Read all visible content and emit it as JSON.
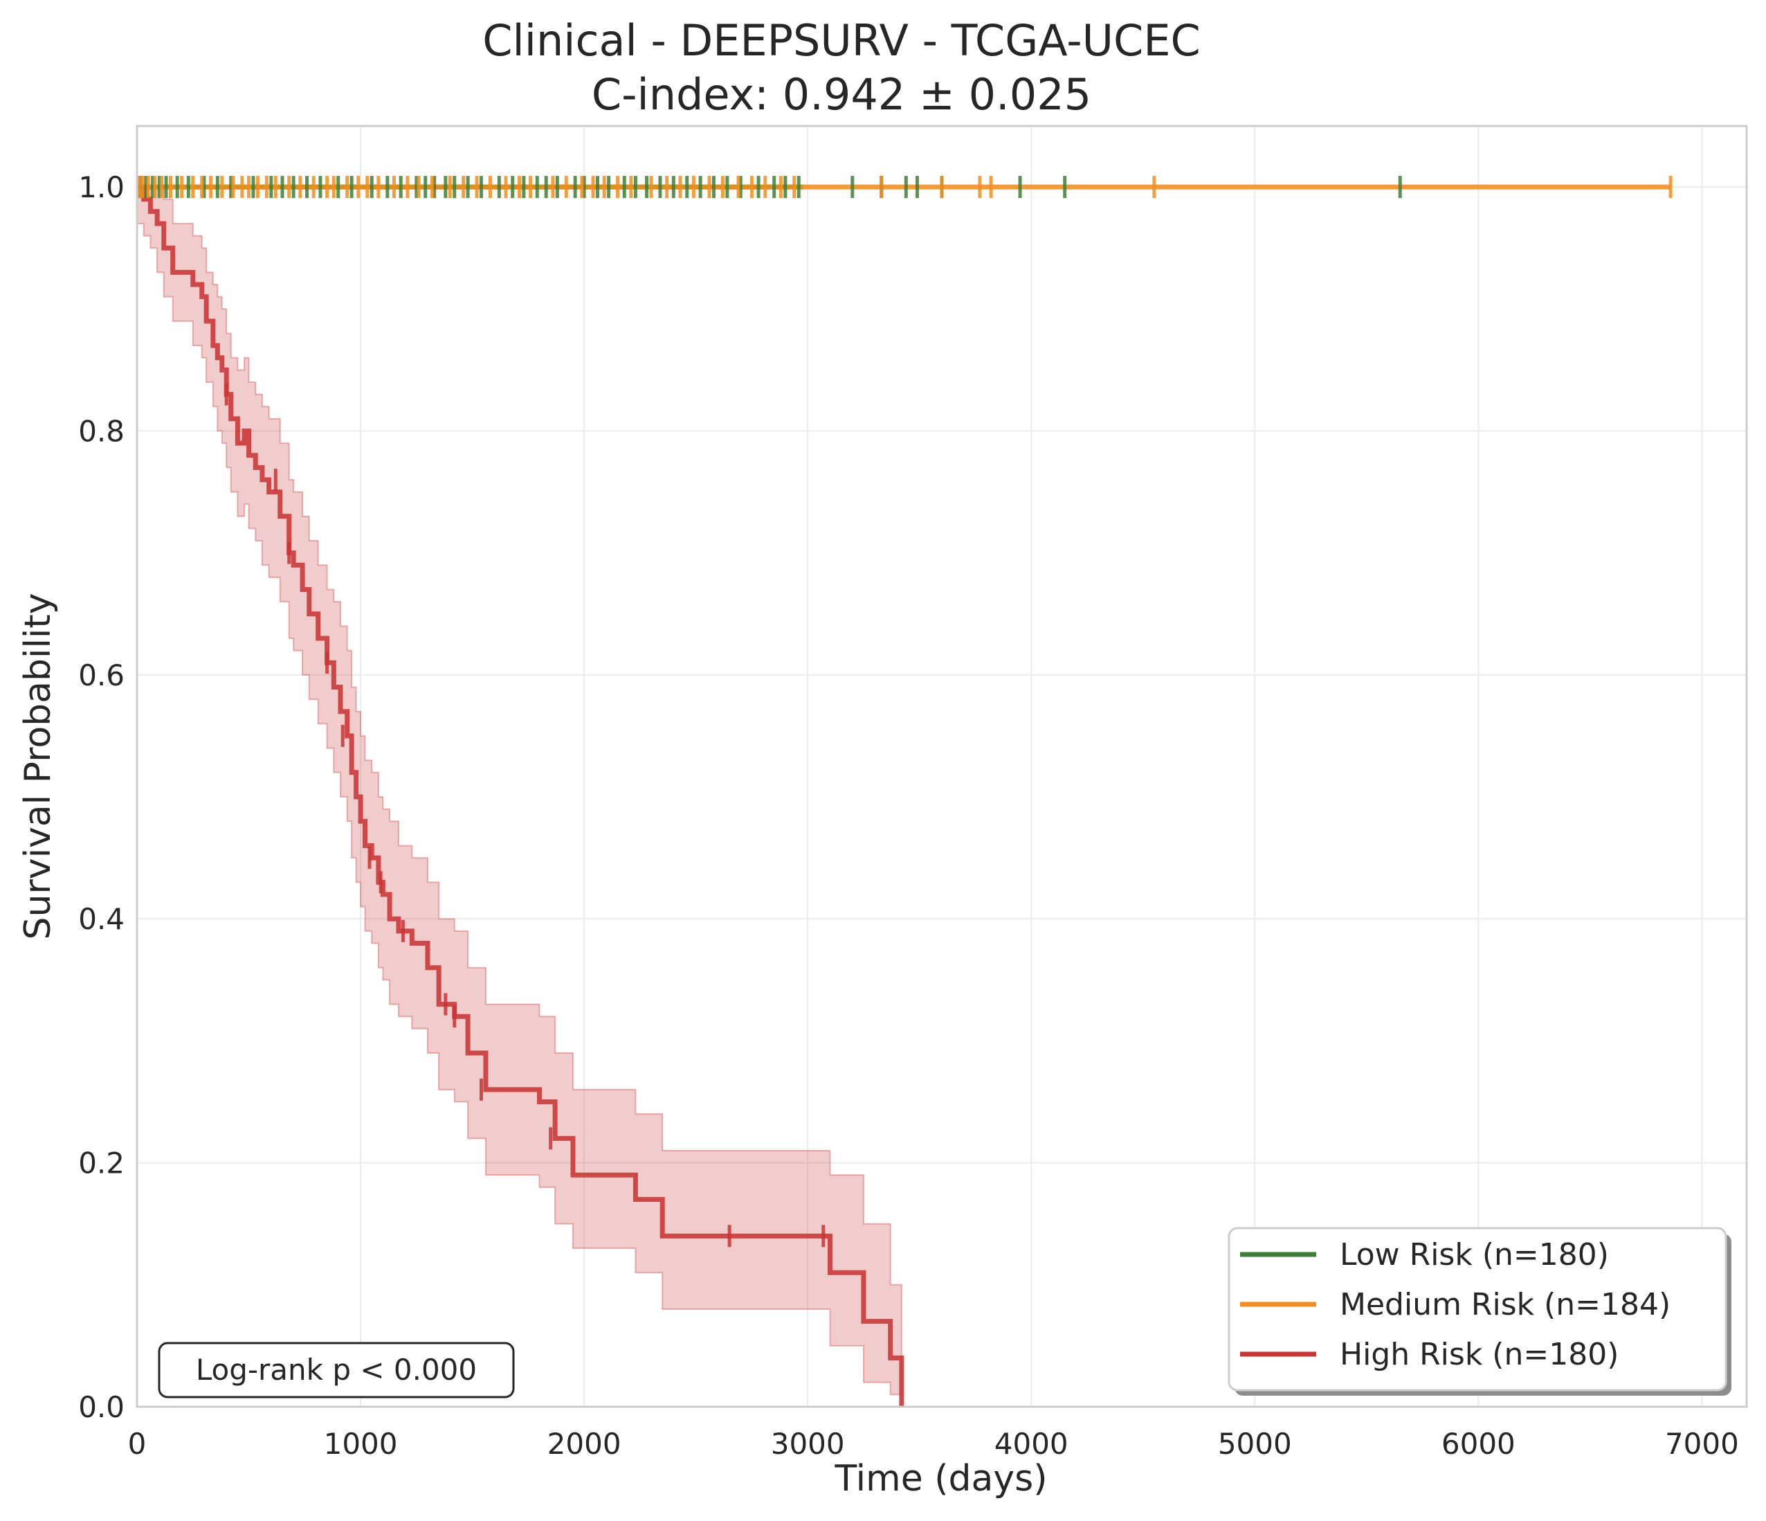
{
  "chart_data": {
    "type": "line",
    "subtype": "kaplan-meier",
    "title": "Clinical - DEEPSURV - TCGA-UCEC",
    "subtitle": "C-index: 0.942 ± 0.025",
    "xlabel": "Time (days)",
    "ylabel": "Survival Probability",
    "xlim": [
      0,
      7200
    ],
    "ylim": [
      0,
      1.05
    ],
    "x_ticks": [
      "0",
      "1000",
      "2000",
      "3000",
      "4000",
      "5000",
      "6000",
      "7000"
    ],
    "y_ticks": [
      "0.0",
      "0.2",
      "0.4",
      "0.6",
      "0.8",
      "1.0"
    ],
    "grid": true,
    "legend_position": "bottom-right",
    "annotation": "Log-rank p < 0.000",
    "series": [
      {
        "name": "Low Risk (n=180)",
        "color": "#3d7f38",
        "x": [
          0,
          2980
        ],
        "y": [
          1.0,
          1.0
        ],
        "censor_x": [
          15,
          40,
          70,
          100,
          130,
          180,
          230,
          300,
          360,
          420,
          520,
          600,
          650,
          700,
          760,
          820,
          900,
          960,
          1050,
          1120,
          1180,
          1250,
          1290,
          1330,
          1380,
          1420,
          1480,
          1540,
          1620,
          1680,
          1730,
          1790,
          1830,
          1880,
          1960,
          2000,
          2060,
          2110,
          2180,
          2230,
          2280,
          2340,
          2400,
          2460,
          2520,
          2580,
          2640,
          2700,
          2780,
          2850,
          2900,
          2960,
          3200,
          3330,
          3440,
          3490,
          3600,
          3950,
          4150,
          5650
        ],
        "censor_y": 1.0
      },
      {
        "name": "Medium Risk (n=184)",
        "color": "#f28e1c",
        "x": [
          0,
          6860
        ],
        "y": [
          1.0,
          1.0
        ],
        "censor_x": [
          10,
          25,
          50,
          80,
          110,
          150,
          200,
          250,
          290,
          330,
          380,
          430,
          470,
          500,
          540,
          580,
          620,
          680,
          730,
          790,
          850,
          880,
          940,
          990,
          1030,
          1080,
          1150,
          1210,
          1260,
          1320,
          1400,
          1460,
          1520,
          1580,
          1650,
          1710,
          1760,
          1860,
          1920,
          1990,
          2040,
          2090,
          2150,
          2210,
          2300,
          2370,
          2430,
          2490,
          2560,
          2620,
          2690,
          2750,
          2810,
          2880,
          2940,
          3330,
          3600,
          3770,
          3820,
          4550,
          6860
        ],
        "censor_y": 1.0
      },
      {
        "name": "High Risk (n=180)",
        "color": "#c93434",
        "x": [
          0,
          30,
          60,
          90,
          120,
          160,
          250,
          290,
          310,
          340,
          360,
          380,
          400,
          420,
          450,
          480,
          500,
          530,
          560,
          590,
          640,
          680,
          700,
          740,
          770,
          810,
          850,
          880,
          910,
          940,
          960,
          980,
          1000,
          1020,
          1050,
          1080,
          1100,
          1130,
          1170,
          1230,
          1300,
          1350,
          1420,
          1480,
          1560,
          1800,
          1870,
          1950,
          2230,
          2350,
          3100,
          3250,
          3370,
          3420
        ],
        "y": [
          1.0,
          0.99,
          0.98,
          0.97,
          0.95,
          0.93,
          0.92,
          0.91,
          0.89,
          0.87,
          0.86,
          0.85,
          0.83,
          0.81,
          0.79,
          0.8,
          0.78,
          0.77,
          0.76,
          0.75,
          0.73,
          0.7,
          0.69,
          0.67,
          0.65,
          0.63,
          0.61,
          0.59,
          0.57,
          0.55,
          0.52,
          0.5,
          0.48,
          0.46,
          0.45,
          0.43,
          0.42,
          0.4,
          0.39,
          0.38,
          0.36,
          0.33,
          0.32,
          0.29,
          0.26,
          0.25,
          0.22,
          0.19,
          0.17,
          0.14,
          0.11,
          0.07,
          0.04,
          0.0
        ],
        "ci_lower": [
          0.97,
          0.96,
          0.95,
          0.93,
          0.91,
          0.89,
          0.87,
          0.86,
          0.84,
          0.82,
          0.8,
          0.79,
          0.77,
          0.75,
          0.73,
          0.74,
          0.72,
          0.71,
          0.69,
          0.68,
          0.66,
          0.63,
          0.62,
          0.6,
          0.58,
          0.56,
          0.54,
          0.52,
          0.5,
          0.48,
          0.45,
          0.43,
          0.41,
          0.39,
          0.38,
          0.36,
          0.35,
          0.33,
          0.32,
          0.31,
          0.29,
          0.26,
          0.25,
          0.22,
          0.19,
          0.18,
          0.15,
          0.13,
          0.11,
          0.08,
          0.05,
          0.02,
          0.01,
          0.0
        ],
        "ci_upper": [
          1.0,
          1.0,
          1.0,
          1.0,
          0.99,
          0.97,
          0.96,
          0.95,
          0.93,
          0.92,
          0.91,
          0.9,
          0.88,
          0.86,
          0.85,
          0.86,
          0.84,
          0.83,
          0.82,
          0.81,
          0.79,
          0.76,
          0.75,
          0.73,
          0.71,
          0.69,
          0.67,
          0.66,
          0.64,
          0.62,
          0.59,
          0.57,
          0.55,
          0.53,
          0.52,
          0.5,
          0.49,
          0.48,
          0.46,
          0.45,
          0.43,
          0.4,
          0.39,
          0.36,
          0.33,
          0.32,
          0.29,
          0.26,
          0.24,
          0.21,
          0.19,
          0.15,
          0.1,
          0.0
        ],
        "censor_x": [
          400,
          620,
          680,
          850,
          920,
          1040,
          1090,
          1190,
          1380,
          1420,
          1540,
          1850,
          2650,
          3070
        ],
        "censor_y": [
          0.83,
          0.76,
          0.7,
          0.61,
          0.55,
          0.45,
          0.43,
          0.39,
          0.33,
          0.32,
          0.26,
          0.22,
          0.14,
          0.14
        ]
      }
    ]
  }
}
